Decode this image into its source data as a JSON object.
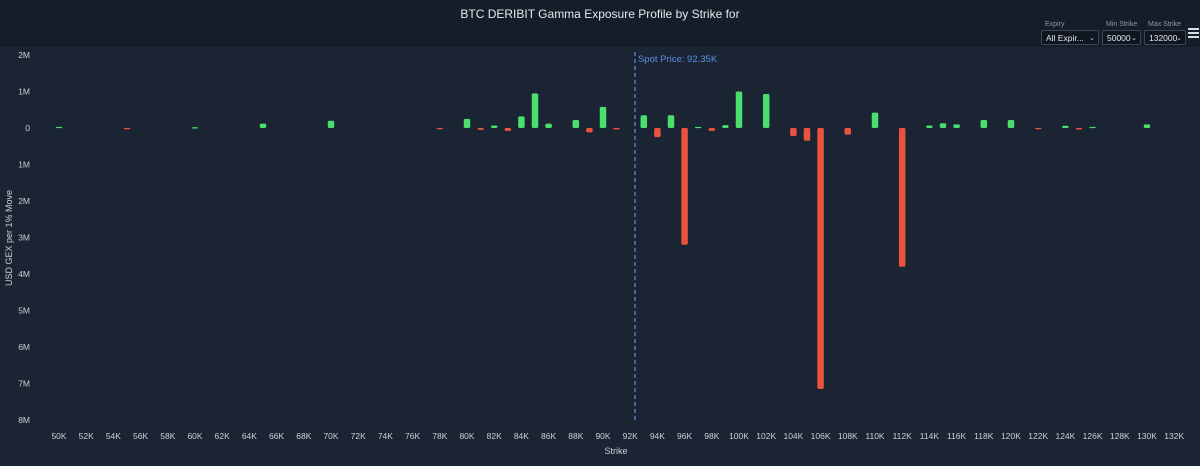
{
  "title": "BTC DERIBIT Gamma Exposure Profile by Strike for",
  "controls": {
    "expiry": {
      "label": "Expiry",
      "value": "All Expir..."
    },
    "min_strike": {
      "label": "Min Strike",
      "value": "50000"
    },
    "max_strike": {
      "label": "Max Strike",
      "value": "132000"
    }
  },
  "icons": {
    "menu": "hamburger-menu-icon",
    "chevron": "chevron-down-icon"
  },
  "colors": {
    "positive": "#4ade6e",
    "negative": "#e8523f",
    "spot_line": "#5b8fe8",
    "background": "#1b2432"
  },
  "chart_data": {
    "type": "bar",
    "xlabel": "Strike",
    "ylabel": "USD GEX per 1% Move",
    "spot": {
      "value": 92350,
      "label": "Spot Price: 92.35K"
    },
    "x_ticks": [
      50000,
      52000,
      54000,
      56000,
      58000,
      60000,
      62000,
      64000,
      66000,
      68000,
      70000,
      72000,
      74000,
      76000,
      78000,
      80000,
      82000,
      84000,
      86000,
      88000,
      90000,
      92000,
      94000,
      96000,
      98000,
      100000,
      102000,
      104000,
      106000,
      108000,
      110000,
      112000,
      114000,
      116000,
      118000,
      120000,
      122000,
      124000,
      126000,
      128000,
      130000,
      132000
    ],
    "x_tick_labels": [
      "50K",
      "52K",
      "54K",
      "56K",
      "58K",
      "60K",
      "62K",
      "64K",
      "66K",
      "68K",
      "70K",
      "72K",
      "74K",
      "76K",
      "78K",
      "80K",
      "82K",
      "84K",
      "86K",
      "88K",
      "90K",
      "92K",
      "94K",
      "96K",
      "98K",
      "100K",
      "102K",
      "104K",
      "106K",
      "108K",
      "110K",
      "112K",
      "114K",
      "116K",
      "118K",
      "120K",
      "122K",
      "124K",
      "126K",
      "128K",
      "130K",
      "132K"
    ],
    "y_ticks": [
      2,
      1,
      0,
      -1,
      -2,
      -3,
      -4,
      -5,
      -6,
      -7,
      -8
    ],
    "y_tick_labels": [
      "2M",
      "1M",
      "0",
      "1M",
      "2M",
      "3M",
      "4M",
      "5M",
      "6M",
      "7M",
      "8M"
    ],
    "ylim": [
      -8,
      2
    ],
    "y_unit": "M",
    "grid": false,
    "strikes": [
      50000,
      55000,
      60000,
      65000,
      70000,
      78000,
      80000,
      81000,
      82000,
      83000,
      84000,
      85000,
      86000,
      88000,
      89000,
      90000,
      91000,
      93000,
      94000,
      95000,
      96000,
      97000,
      98000,
      99000,
      100000,
      102000,
      104000,
      105000,
      106000,
      108000,
      110000,
      112000,
      114000,
      115000,
      116000,
      118000,
      120000,
      122000,
      124000,
      125000,
      126000,
      130000
    ],
    "values": [
      0.03,
      -0.02,
      0.02,
      0.12,
      0.2,
      -0.03,
      0.25,
      -0.05,
      0.07,
      -0.08,
      0.32,
      0.95,
      0.12,
      0.22,
      -0.12,
      0.58,
      -0.04,
      0.35,
      -0.25,
      0.35,
      -3.2,
      0.03,
      -0.08,
      0.08,
      1.0,
      0.93,
      -0.22,
      -0.35,
      -7.15,
      -0.18,
      0.42,
      -3.8,
      0.07,
      0.13,
      0.1,
      0.22,
      0.22,
      -0.03,
      0.06,
      -0.04,
      0.03,
      0.1
    ]
  }
}
